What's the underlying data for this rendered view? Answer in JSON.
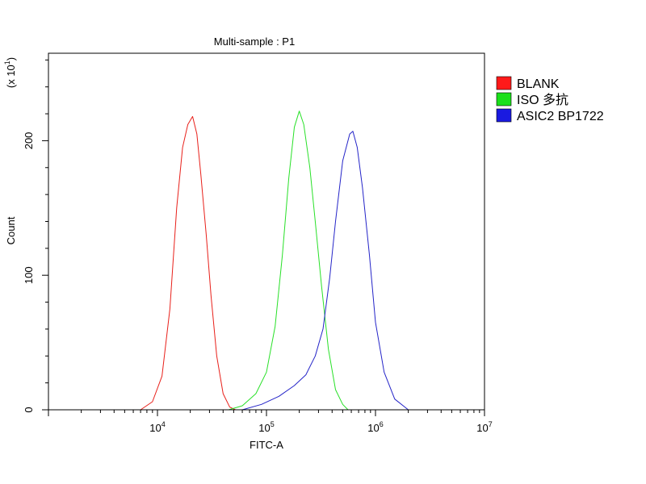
{
  "chart_data": {
    "type": "line",
    "title": "Multi-sample : P1",
    "xlabel": "FITC-A",
    "ylabel": "Count",
    "y_multiplier_label": {
      "base": "(x 10",
      "exp": "1",
      "close": ")"
    },
    "x_scale": "log",
    "xlim": [
      1000,
      10000000
    ],
    "ylim": [
      0,
      265
    ],
    "x_ticks": [
      {
        "base": "10",
        "exp": "4",
        "value": 10000
      },
      {
        "base": "10",
        "exp": "5",
        "value": 100000
      },
      {
        "base": "10",
        "exp": "6",
        "value": 1000000
      },
      {
        "base": "10",
        "exp": "7",
        "value": 10000000
      }
    ],
    "y_ticks": [
      {
        "label": "0",
        "value": 0
      },
      {
        "label": "100",
        "value": 100
      },
      {
        "label": "200",
        "value": 200
      }
    ],
    "legend_position": "right",
    "series": [
      {
        "name": "BLANK",
        "color": "#e8201a",
        "swatch_color": "#ff1a1a",
        "points": [
          [
            7000,
            0
          ],
          [
            9000,
            6
          ],
          [
            11000,
            25
          ],
          [
            13000,
            75
          ],
          [
            15000,
            150
          ],
          [
            17000,
            195
          ],
          [
            19000,
            212
          ],
          [
            21000,
            218
          ],
          [
            23000,
            205
          ],
          [
            25000,
            175
          ],
          [
            28000,
            130
          ],
          [
            31000,
            85
          ],
          [
            35000,
            40
          ],
          [
            40000,
            12
          ],
          [
            46000,
            2
          ],
          [
            52000,
            0
          ]
        ]
      },
      {
        "name": "ISO 多抗",
        "color": "#28e028",
        "swatch_color": "#1ae01a",
        "points": [
          [
            45000,
            0
          ],
          [
            60000,
            3
          ],
          [
            80000,
            12
          ],
          [
            100000,
            28
          ],
          [
            120000,
            62
          ],
          [
            140000,
            115
          ],
          [
            160000,
            172
          ],
          [
            180000,
            210
          ],
          [
            200000,
            222
          ],
          [
            220000,
            212
          ],
          [
            250000,
            180
          ],
          [
            280000,
            140
          ],
          [
            320000,
            92
          ],
          [
            370000,
            45
          ],
          [
            430000,
            15
          ],
          [
            500000,
            4
          ],
          [
            560000,
            0
          ]
        ]
      },
      {
        "name": "ASIC2 BP1722",
        "color": "#2424c8",
        "swatch_color": "#1a1ae0",
        "points": [
          [
            60000,
            0
          ],
          [
            90000,
            4
          ],
          [
            130000,
            10
          ],
          [
            180000,
            18
          ],
          [
            230000,
            26
          ],
          [
            280000,
            40
          ],
          [
            330000,
            60
          ],
          [
            380000,
            98
          ],
          [
            430000,
            140
          ],
          [
            500000,
            185
          ],
          [
            580000,
            205
          ],
          [
            620000,
            207
          ],
          [
            680000,
            195
          ],
          [
            760000,
            165
          ],
          [
            880000,
            115
          ],
          [
            1000000,
            65
          ],
          [
            1200000,
            28
          ],
          [
            1500000,
            8
          ],
          [
            2000000,
            0
          ]
        ]
      }
    ]
  }
}
